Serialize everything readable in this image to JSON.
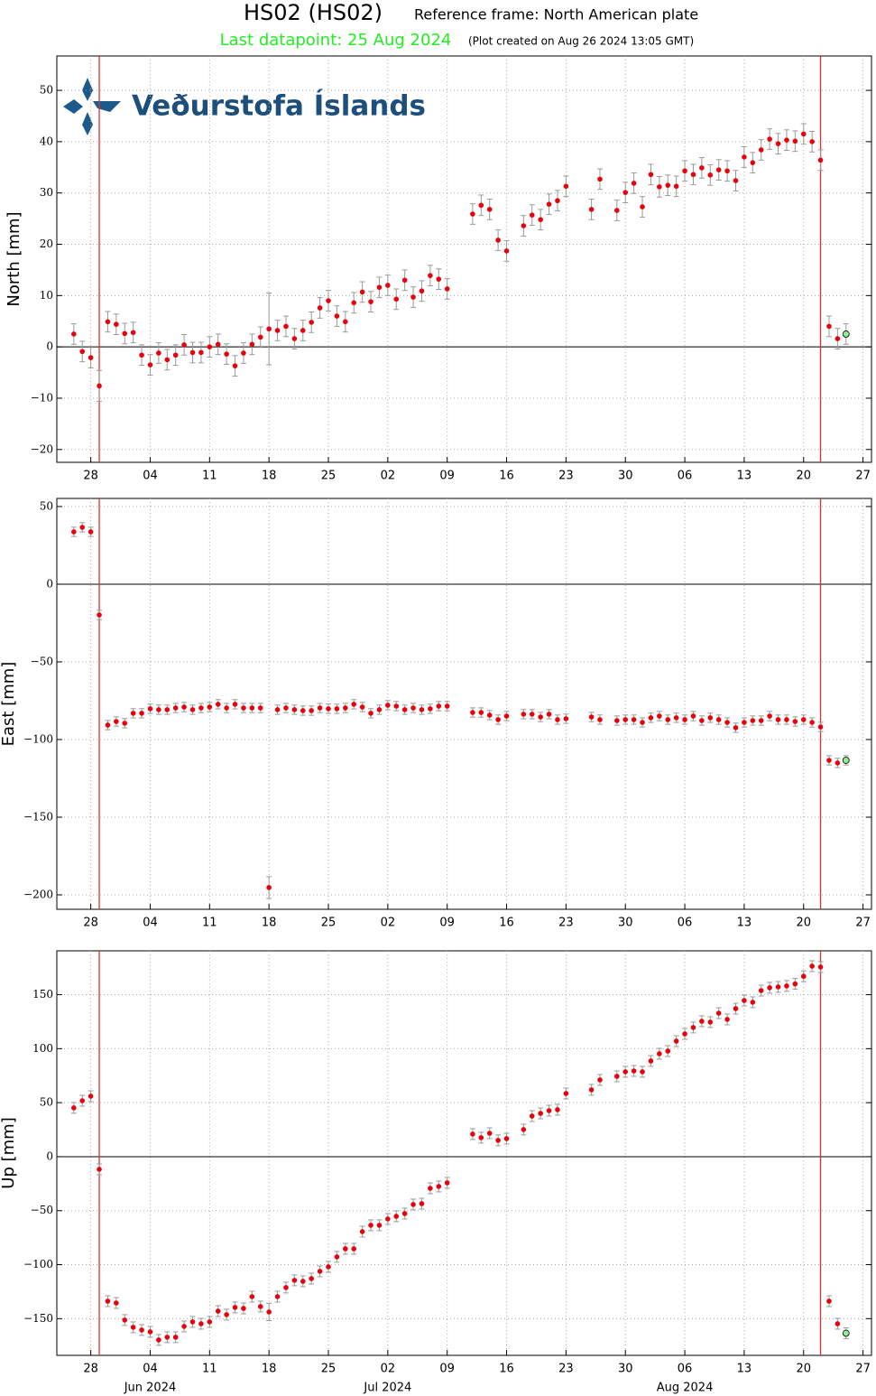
{
  "logo": "Veðurstofa Íslands",
  "chart_data": [
    {
      "type": "scatter",
      "title": "HS02 (HS02)",
      "subtitle": "Reference frame: North American plate",
      "last_datapoint": "Last datapoint: 25 Aug 2024",
      "created": "(Plot created on Aug 26 2024 13:05 GMT)",
      "ylabel": "North [mm]",
      "color": "#e8000b",
      "last_color": "#90ee90",
      "error_color": "#999999",
      "grid": true,
      "zero_line": true,
      "vlines": [
        "2024-05-29",
        "2024-08-22"
      ],
      "vline_color": "#e0302a",
      "xlim": [
        "2024-05-24",
        "2024-08-28"
      ],
      "xticks": [
        {
          "value": "2024-05-28",
          "label": "28"
        },
        {
          "value": "2024-06-04",
          "label": "04"
        },
        {
          "value": "2024-06-11",
          "label": "11"
        },
        {
          "value": "2024-06-18",
          "label": "18"
        },
        {
          "value": "2024-06-25",
          "label": "25"
        },
        {
          "value": "2024-07-02",
          "label": "02"
        },
        {
          "value": "2024-07-09",
          "label": "09"
        },
        {
          "value": "2024-07-16",
          "label": "16"
        },
        {
          "value": "2024-07-23",
          "label": "23"
        },
        {
          "value": "2024-07-30",
          "label": "30"
        },
        {
          "value": "2024-08-06",
          "label": "06"
        },
        {
          "value": "2024-08-13",
          "label": "13"
        },
        {
          "value": "2024-08-20",
          "label": "20"
        },
        {
          "value": "2024-08-27",
          "label": "27"
        }
      ],
      "ylim": [
        -22.5,
        56.7
      ],
      "yticks": [
        {
          "value": -20,
          "label": "−20"
        },
        {
          "value": -10,
          "label": "−10"
        },
        0,
        10,
        20,
        30,
        40,
        50
      ],
      "x": [
        "2024-05-26",
        "2024-05-27",
        "2024-05-28",
        "2024-05-29",
        "2024-05-30",
        "2024-05-31",
        "2024-06-01",
        "2024-06-02",
        "2024-06-03",
        "2024-06-04",
        "2024-06-05",
        "2024-06-06",
        "2024-06-07",
        "2024-06-08",
        "2024-06-09",
        "2024-06-10",
        "2024-06-11",
        "2024-06-12",
        "2024-06-13",
        "2024-06-14",
        "2024-06-15",
        "2024-06-16",
        "2024-06-17",
        "2024-06-18",
        "2024-06-19",
        "2024-06-20",
        "2024-06-21",
        "2024-06-22",
        "2024-06-23",
        "2024-06-24",
        "2024-06-25",
        "2024-06-26",
        "2024-06-27",
        "2024-06-28",
        "2024-06-29",
        "2024-06-30",
        "2024-07-01",
        "2024-07-02",
        "2024-07-03",
        "2024-07-04",
        "2024-07-05",
        "2024-07-06",
        "2024-07-07",
        "2024-07-08",
        "2024-07-09",
        "2024-07-12",
        "2024-07-13",
        "2024-07-14",
        "2024-07-15",
        "2024-07-16",
        "2024-07-18",
        "2024-07-19",
        "2024-07-20",
        "2024-07-21",
        "2024-07-22",
        "2024-07-23",
        "2024-07-26",
        "2024-07-27",
        "2024-07-29",
        "2024-07-30",
        "2024-07-31",
        "2024-08-01",
        "2024-08-02",
        "2024-08-03",
        "2024-08-04",
        "2024-08-05",
        "2024-08-06",
        "2024-08-07",
        "2024-08-08",
        "2024-08-09",
        "2024-08-10",
        "2024-08-11",
        "2024-08-12",
        "2024-08-13",
        "2024-08-14",
        "2024-08-15",
        "2024-08-16",
        "2024-08-17",
        "2024-08-18",
        "2024-08-19",
        "2024-08-20",
        "2024-08-21",
        "2024-08-22",
        "2024-08-23",
        "2024-08-24",
        "2024-08-25"
      ],
      "values": [
        2.5,
        -0.9,
        -2.1,
        -7.6,
        4.9,
        4.4,
        2.6,
        2.8,
        -1.6,
        -3.5,
        -1.2,
        -2.5,
        -1.6,
        0.4,
        -1.1,
        -1.1,
        0.0,
        0.5,
        -1.4,
        -3.7,
        -1.2,
        0.5,
        1.9,
        3.5,
        3.2,
        4.0,
        1.6,
        3.2,
        4.8,
        7.6,
        9.0,
        6.0,
        4.9,
        8.6,
        10.7,
        8.8,
        11.6,
        12.0,
        9.3,
        13.0,
        9.7,
        10.9,
        13.9,
        13.2,
        11.3,
        25.9,
        27.6,
        26.8,
        20.8,
        18.7,
        23.6,
        25.7,
        24.8,
        27.8,
        28.5,
        31.3,
        26.8,
        32.7,
        26.6,
        30.1,
        31.9,
        27.3,
        33.6,
        31.2,
        31.5,
        31.3,
        34.3,
        33.6,
        34.9,
        33.5,
        34.5,
        34.3,
        32.4,
        37.0,
        35.9,
        38.4,
        40.5,
        39.6,
        40.3,
        40.1,
        41.5,
        40.0,
        36.4,
        4.0,
        1.6,
        2.5
      ],
      "errors": [
        2,
        2,
        2,
        3,
        2,
        2,
        2,
        2,
        2,
        2,
        2,
        2,
        2,
        2,
        2,
        2,
        2,
        2,
        2,
        2,
        2,
        2,
        2,
        7,
        2,
        2,
        2,
        2,
        2,
        2,
        2,
        2,
        2,
        2,
        2,
        2,
        2,
        2,
        2,
        2,
        2,
        2,
        2,
        2,
        2,
        2,
        2,
        2,
        2,
        2,
        2,
        2,
        2,
        2,
        2,
        2,
        2,
        2,
        2,
        2,
        2,
        2,
        2,
        2,
        2,
        2,
        2,
        2,
        2,
        2,
        2,
        2,
        2,
        2,
        2,
        2,
        2,
        2,
        2,
        2,
        2,
        2,
        2,
        2,
        2,
        2
      ]
    },
    {
      "type": "scatter",
      "ylabel": "East [mm]",
      "color": "#e8000b",
      "last_color": "#90ee90",
      "error_color": "#999999",
      "grid": true,
      "zero_line": true,
      "vlines": [
        "2024-05-29",
        "2024-08-22"
      ],
      "vline_color": "#e0302a",
      "xlim": [
        "2024-05-24",
        "2024-08-28"
      ],
      "xticks": [
        {
          "value": "2024-05-28",
          "label": "28"
        },
        {
          "value": "2024-06-04",
          "label": "04"
        },
        {
          "value": "2024-06-11",
          "label": "11"
        },
        {
          "value": "2024-06-18",
          "label": "18"
        },
        {
          "value": "2024-06-25",
          "label": "25"
        },
        {
          "value": "2024-07-02",
          "label": "02"
        },
        {
          "value": "2024-07-09",
          "label": "09"
        },
        {
          "value": "2024-07-16",
          "label": "16"
        },
        {
          "value": "2024-07-23",
          "label": "23"
        },
        {
          "value": "2024-07-30",
          "label": "30"
        },
        {
          "value": "2024-08-06",
          "label": "06"
        },
        {
          "value": "2024-08-13",
          "label": "13"
        },
        {
          "value": "2024-08-20",
          "label": "20"
        },
        {
          "value": "2024-08-27",
          "label": "27"
        }
      ],
      "ylim": [
        -209.3,
        55.2
      ],
      "yticks": [
        {
          "value": -200,
          "label": "−200"
        },
        {
          "value": -150,
          "label": "−150"
        },
        {
          "value": -100,
          "label": "−100"
        },
        {
          "value": -50,
          "label": "−50"
        },
        0,
        50
      ],
      "x": [
        "2024-05-26",
        "2024-05-27",
        "2024-05-28",
        "2024-05-29",
        "2024-05-30",
        "2024-05-31",
        "2024-06-01",
        "2024-06-02",
        "2024-06-03",
        "2024-06-04",
        "2024-06-05",
        "2024-06-06",
        "2024-06-07",
        "2024-06-08",
        "2024-06-09",
        "2024-06-10",
        "2024-06-11",
        "2024-06-12",
        "2024-06-13",
        "2024-06-14",
        "2024-06-15",
        "2024-06-16",
        "2024-06-17",
        "2024-06-18",
        "2024-06-19",
        "2024-06-20",
        "2024-06-21",
        "2024-06-22",
        "2024-06-23",
        "2024-06-24",
        "2024-06-25",
        "2024-06-26",
        "2024-06-27",
        "2024-06-28",
        "2024-06-29",
        "2024-06-30",
        "2024-07-01",
        "2024-07-02",
        "2024-07-03",
        "2024-07-04",
        "2024-07-05",
        "2024-07-06",
        "2024-07-07",
        "2024-07-08",
        "2024-07-09",
        "2024-07-12",
        "2024-07-13",
        "2024-07-14",
        "2024-07-15",
        "2024-07-16",
        "2024-07-18",
        "2024-07-19",
        "2024-07-20",
        "2024-07-21",
        "2024-07-22",
        "2024-07-23",
        "2024-07-26",
        "2024-07-27",
        "2024-07-29",
        "2024-07-30",
        "2024-07-31",
        "2024-08-01",
        "2024-08-02",
        "2024-08-03",
        "2024-08-04",
        "2024-08-05",
        "2024-08-06",
        "2024-08-07",
        "2024-08-08",
        "2024-08-09",
        "2024-08-10",
        "2024-08-11",
        "2024-08-12",
        "2024-08-13",
        "2024-08-14",
        "2024-08-15",
        "2024-08-16",
        "2024-08-17",
        "2024-08-18",
        "2024-08-19",
        "2024-08-20",
        "2024-08-21",
        "2024-08-22",
        "2024-08-23",
        "2024-08-24",
        "2024-08-25"
      ],
      "values": [
        33.7,
        36.6,
        33.7,
        -19.8,
        -90.7,
        -88.4,
        -89.5,
        -83.1,
        -83.1,
        -80.2,
        -80.8,
        -80.8,
        -79.7,
        -79.1,
        -80.8,
        -79.7,
        -79.1,
        -77.3,
        -79.7,
        -77.3,
        -79.7,
        -79.7,
        -79.7,
        -195.3,
        -80.8,
        -79.7,
        -80.8,
        -81.4,
        -81.4,
        -79.7,
        -80.2,
        -80.2,
        -79.7,
        -77.3,
        -79.1,
        -83.1,
        -80.8,
        -77.9,
        -78.5,
        -80.8,
        -79.7,
        -80.8,
        -80.2,
        -78.5,
        -78.5,
        -82.6,
        -82.6,
        -84.3,
        -87.2,
        -84.9,
        -83.7,
        -83.7,
        -85.5,
        -83.7,
        -87.2,
        -86.6,
        -85.5,
        -87.2,
        -87.8,
        -87.2,
        -87.2,
        -89.0,
        -86.0,
        -84.9,
        -87.2,
        -86.0,
        -87.2,
        -84.9,
        -87.8,
        -86.0,
        -87.2,
        -89.0,
        -92.4,
        -89.0,
        -87.8,
        -87.8,
        -84.9,
        -87.2,
        -87.2,
        -88.4,
        -87.2,
        -89.0,
        -91.9,
        -113.4,
        -115.1,
        -113.4
      ],
      "errors": [
        3,
        3,
        3,
        3,
        3,
        3,
        3,
        3,
        3,
        3,
        3,
        3,
        3,
        3,
        3,
        3,
        3,
        3,
        3,
        3,
        3,
        3,
        3,
        7,
        3,
        3,
        3,
        3,
        3,
        3,
        3,
        3,
        3,
        3,
        3,
        3,
        3,
        3,
        3,
        3,
        3,
        3,
        3,
        3,
        3,
        3,
        3,
        3,
        3,
        3,
        3,
        3,
        3,
        3,
        3,
        3,
        3,
        3,
        3,
        3,
        3,
        3,
        3,
        3,
        3,
        3,
        3,
        3,
        3,
        3,
        3,
        3,
        3,
        3,
        3,
        3,
        3,
        3,
        3,
        3,
        3,
        3,
        3,
        3,
        3,
        3
      ]
    },
    {
      "type": "scatter",
      "ylabel": "Up [mm]",
      "color": "#e8000b",
      "last_color": "#90ee90",
      "error_color": "#999999",
      "grid": true,
      "zero_line": true,
      "vlines": [
        "2024-05-29",
        "2024-08-22"
      ],
      "vline_color": "#e0302a",
      "xlim": [
        "2024-05-24",
        "2024-08-28"
      ],
      "xticks": [
        {
          "value": "2024-05-28",
          "label": "28"
        },
        {
          "value": "2024-06-04",
          "label": "04"
        },
        {
          "value": "2024-06-11",
          "label": "11"
        },
        {
          "value": "2024-06-18",
          "label": "18"
        },
        {
          "value": "2024-06-25",
          "label": "25"
        },
        {
          "value": "2024-07-02",
          "label": "02"
        },
        {
          "value": "2024-07-09",
          "label": "09"
        },
        {
          "value": "2024-07-16",
          "label": "16"
        },
        {
          "value": "2024-07-23",
          "label": "23"
        },
        {
          "value": "2024-07-30",
          "label": "30"
        },
        {
          "value": "2024-08-06",
          "label": "06"
        },
        {
          "value": "2024-08-13",
          "label": "13"
        },
        {
          "value": "2024-08-20",
          "label": "20"
        },
        {
          "value": "2024-08-27",
          "label": "27"
        }
      ],
      "month_labels": [
        {
          "value": "2024-06-04",
          "label": "Jun 2024"
        },
        {
          "value": "2024-07-02",
          "label": "Jul 2024"
        },
        {
          "value": "2024-08-06",
          "label": "Aug 2024"
        }
      ],
      "ylim": [
        -184,
        190.6
      ],
      "yticks": [
        {
          "value": -150,
          "label": "−150"
        },
        {
          "value": -100,
          "label": "−100"
        },
        {
          "value": -50,
          "label": "−50"
        },
        0,
        50,
        100,
        150
      ],
      "x": [
        "2024-05-26",
        "2024-05-27",
        "2024-05-28",
        "2024-05-29",
        "2024-05-30",
        "2024-05-31",
        "2024-06-01",
        "2024-06-02",
        "2024-06-03",
        "2024-06-04",
        "2024-06-05",
        "2024-06-06",
        "2024-06-07",
        "2024-06-08",
        "2024-06-09",
        "2024-06-10",
        "2024-06-11",
        "2024-06-12",
        "2024-06-13",
        "2024-06-14",
        "2024-06-15",
        "2024-06-16",
        "2024-06-17",
        "2024-06-18",
        "2024-06-19",
        "2024-06-20",
        "2024-06-21",
        "2024-06-22",
        "2024-06-23",
        "2024-06-24",
        "2024-06-25",
        "2024-06-26",
        "2024-06-27",
        "2024-06-28",
        "2024-06-29",
        "2024-06-30",
        "2024-07-01",
        "2024-07-02",
        "2024-07-03",
        "2024-07-04",
        "2024-07-05",
        "2024-07-06",
        "2024-07-07",
        "2024-07-08",
        "2024-07-09",
        "2024-07-12",
        "2024-07-13",
        "2024-07-14",
        "2024-07-15",
        "2024-07-16",
        "2024-07-18",
        "2024-07-19",
        "2024-07-20",
        "2024-07-21",
        "2024-07-22",
        "2024-07-23",
        "2024-07-26",
        "2024-07-27",
        "2024-07-29",
        "2024-07-30",
        "2024-07-31",
        "2024-08-01",
        "2024-08-02",
        "2024-08-03",
        "2024-08-04",
        "2024-08-05",
        "2024-08-06",
        "2024-08-07",
        "2024-08-08",
        "2024-08-09",
        "2024-08-10",
        "2024-08-11",
        "2024-08-12",
        "2024-08-13",
        "2024-08-14",
        "2024-08-15",
        "2024-08-16",
        "2024-08-17",
        "2024-08-18",
        "2024-08-19",
        "2024-08-20",
        "2024-08-21",
        "2024-08-22",
        "2024-08-23",
        "2024-08-24",
        "2024-08-25"
      ],
      "values": [
        45.2,
        51.8,
        56.0,
        -11.7,
        -133.8,
        -135.5,
        -151.3,
        -158.0,
        -160.5,
        -162.2,
        -169.7,
        -167.2,
        -167.2,
        -157.2,
        -153.0,
        -154.7,
        -153.0,
        -143.0,
        -146.3,
        -139.6,
        -140.5,
        -129.6,
        -138.8,
        -143.8,
        -129.6,
        -121.2,
        -114.5,
        -115.4,
        -112.9,
        -106.2,
        -102.0,
        -92.8,
        -85.3,
        -85.3,
        -69.4,
        -63.5,
        -63.5,
        -57.7,
        -55.2,
        -52.7,
        -44.3,
        -43.5,
        -29.3,
        -27.6,
        -24.2,
        20.9,
        17.6,
        21.7,
        15.1,
        16.7,
        25.1,
        37.6,
        40.1,
        42.6,
        43.5,
        58.5,
        61.9,
        71.1,
        74.4,
        78.6,
        79.4,
        78.6,
        88.6,
        95.3,
        97.8,
        107.0,
        113.7,
        119.6,
        125.4,
        124.6,
        132.9,
        127.1,
        137.1,
        144.6,
        143.0,
        153.8,
        156.4,
        157.2,
        158.1,
        160.0,
        167.0,
        176.4,
        175.6,
        -133.8,
        -154.7,
        -163.5
      ],
      "errors": [
        5,
        5,
        5,
        5,
        5,
        5,
        5,
        5,
        5,
        5,
        5,
        5,
        5,
        5,
        5,
        5,
        5,
        5,
        5,
        5,
        5,
        5,
        5,
        8,
        5,
        5,
        5,
        5,
        5,
        5,
        5,
        5,
        5,
        5,
        5,
        5,
        5,
        5,
        5,
        5,
        5,
        5,
        5,
        5,
        5,
        5,
        5,
        5,
        5,
        5,
        5,
        5,
        5,
        5,
        5,
        5,
        5,
        5,
        5,
        5,
        5,
        5,
        5,
        5,
        5,
        5,
        5,
        5,
        5,
        5,
        5,
        5,
        5,
        5,
        5,
        5,
        5,
        5,
        5,
        5,
        5,
        5,
        5,
        5,
        5,
        5
      ]
    }
  ]
}
